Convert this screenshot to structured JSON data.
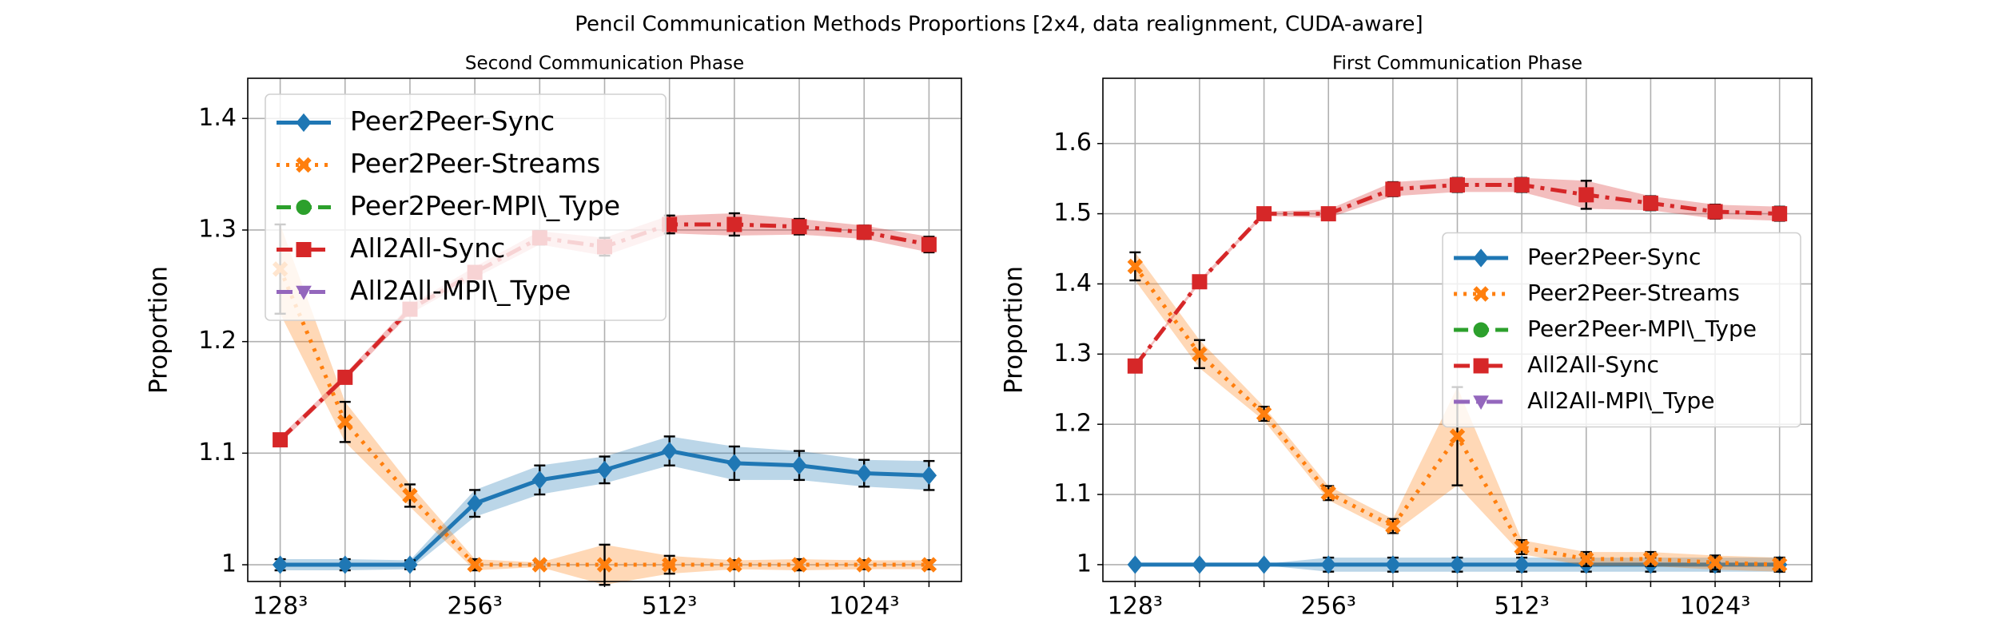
{
  "title": "Pencil Communication Methods Proportions [2x4, data realignment, CUDA-aware]",
  "chart_data": [
    {
      "type": "line",
      "title": "Second Communication Phase",
      "ylabel": "Proportion",
      "categories": [
        "128³",
        null,
        null,
        "256³",
        null,
        null,
        "512³",
        null,
        null,
        "1024³",
        null
      ],
      "ylim": [
        0.985,
        1.436
      ],
      "yticks": [
        1.0,
        1.1,
        1.2,
        1.3,
        1.4
      ],
      "grid": true,
      "legend": "upper left",
      "series": [
        {
          "name": "Peer2Peer-Sync",
          "color": "#1f77b4",
          "values": [
            1.0,
            1.0,
            1.0,
            1.055,
            1.076,
            1.085,
            1.102,
            1.091,
            1.089,
            1.082,
            1.08
          ],
          "errors": [
            0.005,
            0.005,
            0.004,
            0.012,
            0.013,
            0.012,
            0.013,
            0.015,
            0.013,
            0.012,
            0.013
          ]
        },
        {
          "name": "Peer2Peer-Streams",
          "color": "#ff7f0e",
          "values": [
            1.265,
            1.128,
            1.062,
            1.0,
            1.0,
            1.0,
            1.0,
            1.0,
            1.0,
            1.0,
            1.0
          ],
          "errors": [
            0.04,
            0.018,
            0.01,
            0.005,
            0.002,
            0.018,
            0.008,
            0.004,
            0.005,
            0.004,
            0.004
          ]
        },
        {
          "name": "Peer2Peer-MPI\\_Type",
          "color": "#2ca02c",
          "values": [
            null,
            null,
            null,
            null,
            null,
            null,
            null,
            null,
            null,
            null,
            null
          ],
          "errors": [
            null,
            null,
            null,
            null,
            null,
            null,
            null,
            null,
            null,
            null,
            null
          ]
        },
        {
          "name": "All2All-Sync",
          "color": "#d62728",
          "values": [
            1.112,
            1.168,
            1.229,
            1.262,
            1.293,
            1.285,
            1.305,
            1.305,
            1.303,
            1.298,
            1.287
          ],
          "errors": [
            0.003,
            0.003,
            0.004,
            0.005,
            0.006,
            0.008,
            0.008,
            0.01,
            0.007,
            0.006,
            0.007
          ]
        },
        {
          "name": "All2All-MPI\\_Type",
          "color": "#9467bd",
          "values": [
            null,
            null,
            null,
            null,
            null,
            null,
            null,
            null,
            null,
            null,
            null
          ],
          "errors": [
            null,
            null,
            null,
            null,
            null,
            null,
            null,
            null,
            null,
            null,
            null
          ]
        }
      ]
    },
    {
      "type": "line",
      "title": "First Communication Phase",
      "ylabel": "Proportion",
      "categories": [
        "128³",
        null,
        null,
        "256³",
        null,
        null,
        "512³",
        null,
        null,
        "1024³",
        null
      ],
      "ylim": [
        0.976,
        1.693
      ],
      "yticks": [
        1.0,
        1.1,
        1.2,
        1.3,
        1.4,
        1.5,
        1.6
      ],
      "grid": true,
      "legend": "center right",
      "series": [
        {
          "name": "Peer2Peer-Sync",
          "color": "#1f77b4",
          "values": [
            1.0,
            1.0,
            1.0,
            1.0,
            1.0,
            1.0,
            1.0,
            1.0,
            1.0,
            1.0,
            1.0
          ],
          "errors": [
            0.001,
            0.001,
            0.001,
            0.01,
            0.01,
            0.01,
            0.01,
            0.01,
            0.01,
            0.01,
            0.01
          ]
        },
        {
          "name": "Peer2Peer-Streams",
          "color": "#ff7f0e",
          "values": [
            1.425,
            1.3,
            1.215,
            1.102,
            1.055,
            1.183,
            1.025,
            1.008,
            1.008,
            1.003,
            1.0
          ],
          "errors": [
            0.02,
            0.02,
            0.01,
            0.01,
            0.01,
            0.07,
            0.01,
            0.01,
            0.01,
            0.01,
            0.01
          ]
        },
        {
          "name": "Peer2Peer-MPI\\_Type",
          "color": "#2ca02c",
          "values": [
            null,
            null,
            null,
            null,
            null,
            null,
            null,
            null,
            null,
            null,
            null
          ],
          "errors": [
            null,
            null,
            null,
            null,
            null,
            null,
            null,
            null,
            null,
            null,
            null
          ]
        },
        {
          "name": "All2All-Sync",
          "color": "#d62728",
          "values": [
            1.283,
            1.403,
            1.5,
            1.5,
            1.535,
            1.541,
            1.541,
            1.527,
            1.515,
            1.503,
            1.5
          ],
          "errors": [
            0.002,
            0.003,
            0.003,
            0.006,
            0.01,
            0.01,
            0.01,
            0.02,
            0.01,
            0.01,
            0.01
          ]
        },
        {
          "name": "All2All-MPI\\_Type",
          "color": "#9467bd",
          "values": [
            null,
            null,
            null,
            null,
            null,
            null,
            null,
            null,
            null,
            null,
            null
          ],
          "errors": [
            null,
            null,
            null,
            null,
            null,
            null,
            null,
            null,
            null,
            null,
            null
          ]
        }
      ]
    }
  ]
}
